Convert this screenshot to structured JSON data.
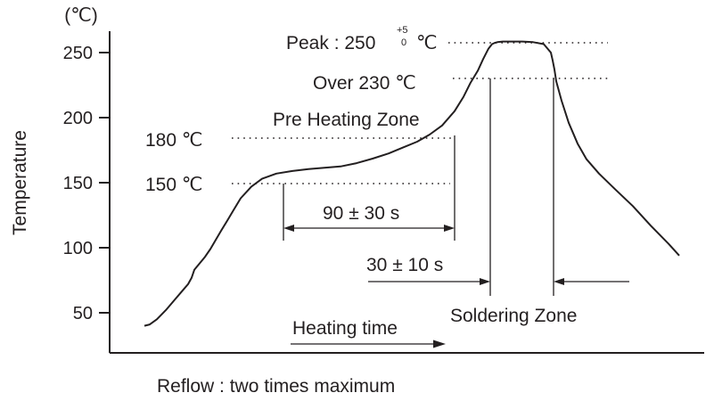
{
  "chart_data": {
    "type": "line",
    "title": "",
    "xlabel": "",
    "ylabel": "Temperature",
    "y_unit": "(℃)",
    "ylim": [
      25,
      268
    ],
    "y_ticks": [
      "250",
      "200",
      "150",
      "100",
      "50"
    ],
    "grid": false,
    "series": [
      {
        "name": "",
        "x": [
          0,
          6,
          14,
          24,
          34,
          44,
          49,
          53,
          56,
          62,
          68,
          74,
          80,
          86,
          94,
          100,
          108,
          120,
          132,
          148,
          166,
          184,
          202,
          220,
          238,
          256,
          274,
          290,
          306,
          320,
          334,
          348,
          358,
          366,
          374,
          380,
          386,
          390,
          393,
          396,
          402,
          412,
          424,
          436,
          448,
          456,
          458,
          460,
          462,
          468,
          476,
          486,
          496,
          510,
          528,
          548,
          568,
          588,
          600
        ],
        "y": [
          40,
          41,
          45,
          52,
          60,
          68,
          72,
          77,
          83,
          88,
          93,
          99,
          106,
          113,
          122,
          129,
          138,
          147,
          153,
          157,
          159,
          160.5,
          161.5,
          162.5,
          165,
          168.5,
          172.5,
          177,
          181.5,
          187,
          194,
          205,
          216,
          227,
          236,
          245,
          253,
          256.5,
          257.5,
          258,
          258.5,
          258.5,
          258.5,
          258,
          256.5,
          250,
          244,
          237,
          228,
          213,
          196,
          180,
          168,
          157,
          145,
          132,
          117,
          103,
          94
        ]
      }
    ],
    "annotations": {
      "peak_prefix": "Peak : 250",
      "peak_sup_plus": "+5",
      "peak_sup_zero": "0",
      "peak_unit": "℃",
      "over": "Over 230 ℃",
      "pre_heating_zone": "Pre Heating Zone",
      "t180": "180 ℃",
      "t150": "150 ℃",
      "preheat_time": "90 ± 30 s",
      "solder_time": "30 ± 10 s",
      "soldering_zone": "Soldering Zone",
      "heating_time": "Heating time"
    },
    "footnote": "Reflow : two times maximum"
  }
}
